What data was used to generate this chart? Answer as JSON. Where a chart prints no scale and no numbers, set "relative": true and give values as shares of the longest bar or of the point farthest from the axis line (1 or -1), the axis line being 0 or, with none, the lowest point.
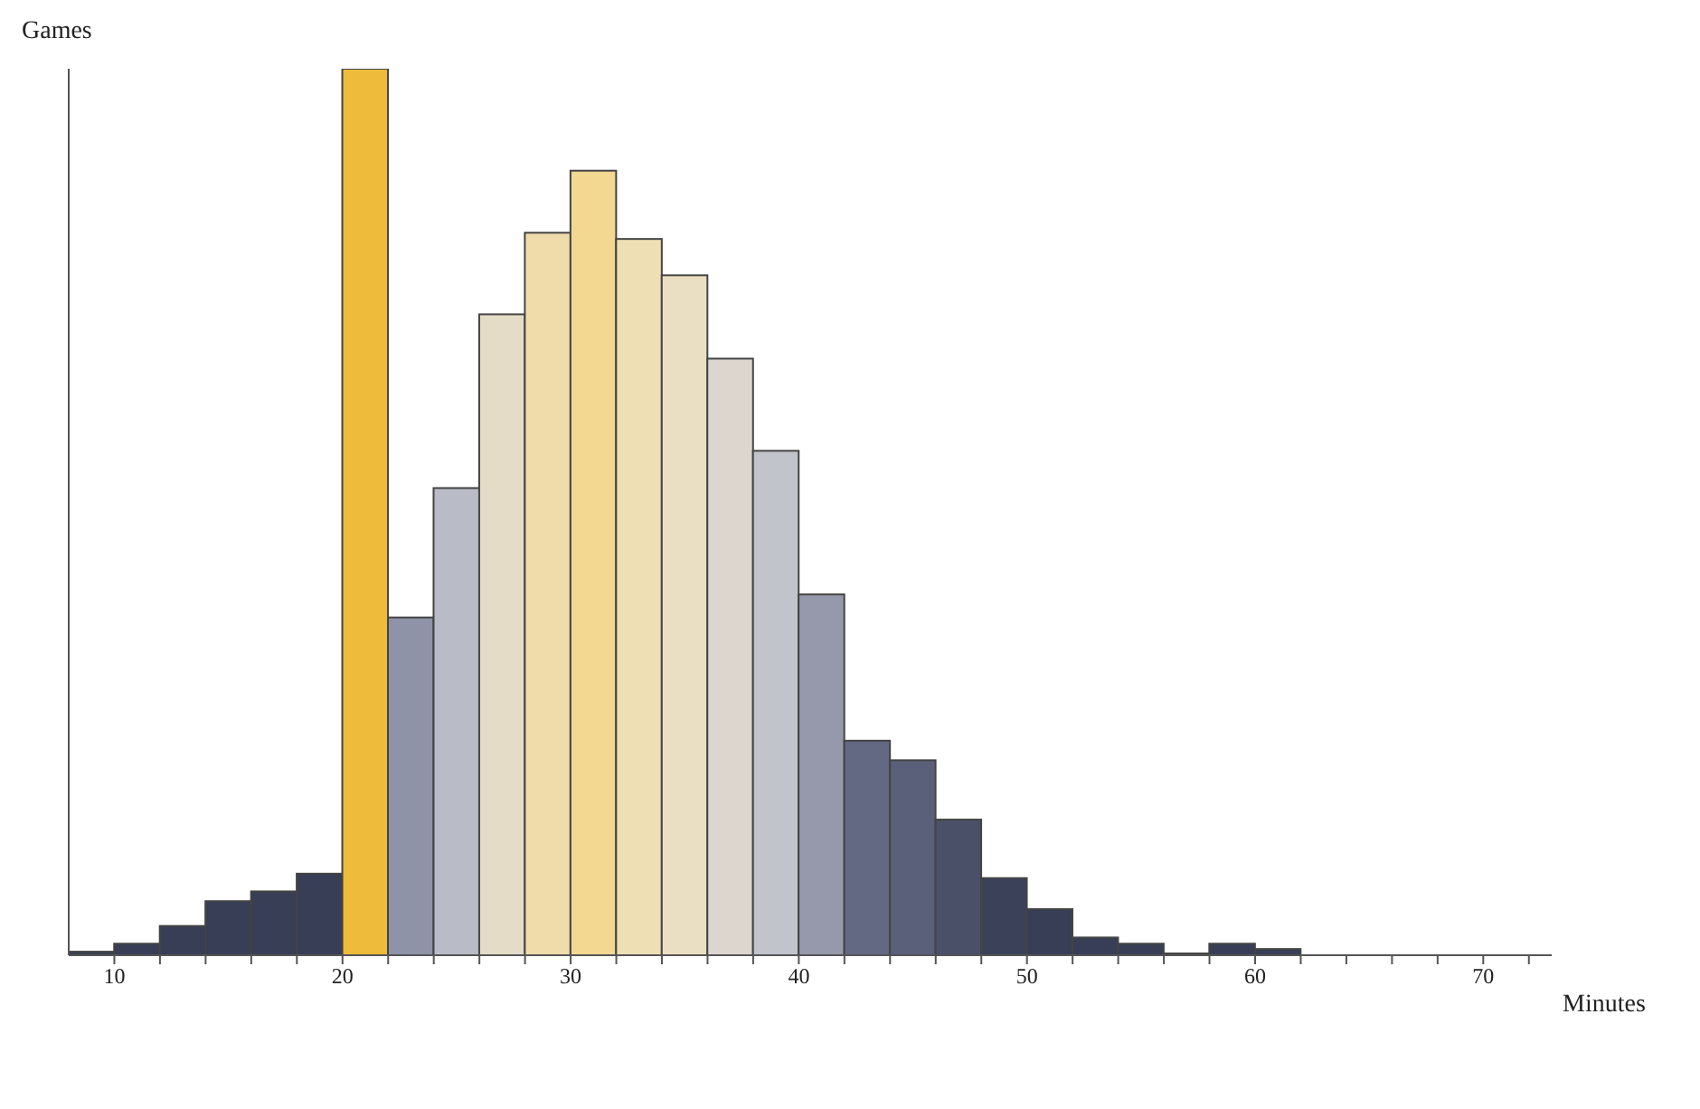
{
  "chart_data": {
    "type": "bar",
    "relative": true,
    "xlabel": "Minutes",
    "ylabel": "Games",
    "x": [
      9,
      11,
      13,
      15,
      17,
      19,
      21,
      23,
      25,
      27,
      29,
      31,
      33,
      35,
      37,
      39,
      41,
      43,
      45,
      47,
      49,
      51,
      53,
      55,
      57,
      59,
      61
    ],
    "values": [
      0.004,
      0.013,
      0.033,
      0.061,
      0.072,
      0.092,
      1,
      0.381,
      0.527,
      0.723,
      0.815,
      0.885,
      0.808,
      0.767,
      0.673,
      0.569,
      0.407,
      0.242,
      0.22,
      0.153,
      0.087,
      0.052,
      0.02,
      0.013,
      0.002,
      0.013,
      0.007
    ],
    "colors": [
      "#373e55",
      "#373e55",
      "#373e55",
      "#373e55",
      "#373e55",
      "#373e55",
      "#eebc3a",
      "#8e93a8",
      "#b9bbc6",
      "#e4dcc6",
      "#efdcaa",
      "#f2d890",
      "#efdfb5",
      "#ebdfc3",
      "#ddd6cf",
      "#c2c4cc",
      "#9699ab",
      "#636883",
      "#5b607a",
      "#4a5068",
      "#3a4158",
      "#373e55",
      "#373e55",
      "#373e55",
      "#373e55",
      "#373e55",
      "#373e55"
    ],
    "xlim": [
      8,
      73
    ],
    "xticks": [
      10,
      {
        "value": 12,
        "label": null
      },
      {
        "value": 14,
        "label": null
      },
      {
        "value": 16,
        "label": null
      },
      {
        "value": 18,
        "label": null
      },
      20,
      {
        "value": 22,
        "label": null
      },
      {
        "value": 24,
        "label": null
      },
      {
        "value": 26,
        "label": null
      },
      {
        "value": 28,
        "label": null
      },
      30,
      {
        "value": 32,
        "label": null
      },
      {
        "value": 34,
        "label": null
      },
      {
        "value": 36,
        "label": null
      },
      {
        "value": 38,
        "label": null
      },
      40,
      {
        "value": 42,
        "label": null
      },
      {
        "value": 44,
        "label": null
      },
      {
        "value": 46,
        "label": null
      },
      {
        "value": 48,
        "label": null
      },
      50,
      {
        "value": 52,
        "label": null
      },
      {
        "value": 54,
        "label": null
      },
      {
        "value": 56,
        "label": null
      },
      {
        "value": 58,
        "label": null
      },
      60,
      {
        "value": 62,
        "label": null
      },
      {
        "value": 64,
        "label": null
      },
      {
        "value": 66,
        "label": null
      },
      {
        "value": 68,
        "label": null
      },
      70,
      {
        "value": 72,
        "label": null
      }
    ],
    "grid": false,
    "legend": false
  }
}
